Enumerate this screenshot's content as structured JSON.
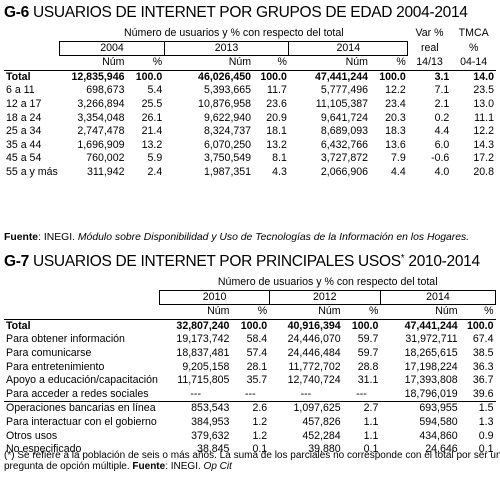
{
  "g6": {
    "code": "G-6",
    "title": "USUARIOS DE INTERNET POR GRUPOS DE EDAD 2004-2014",
    "group_header": "Número de usuarios y % con respecto del total",
    "extra_headers": [
      "Var %",
      "TMCA"
    ],
    "extra_sub1": [
      "real",
      "%"
    ],
    "extra_sub2": [
      "14/13",
      "04-14"
    ],
    "years": [
      "2004",
      "2013",
      "2014"
    ],
    "col_num": "Núm",
    "col_pct": "%",
    "rows": [
      {
        "label": "Total",
        "v": [
          "12,835,946",
          "100.0",
          "46,026,450",
          "100.0",
          "47,441,244",
          "100.0",
          "3.1",
          "14.0"
        ]
      },
      {
        "label": "6 a 11",
        "v": [
          "698,673",
          "5.4",
          "5,393,665",
          "11.7",
          "5,777,496",
          "12.2",
          "7.1",
          "23.5"
        ]
      },
      {
        "label": "12 a 17",
        "v": [
          "3,266,894",
          "25.5",
          "10,876,958",
          "23.6",
          "11,105,387",
          "23.4",
          "2.1",
          "13.0"
        ]
      },
      {
        "label": "18 a 24",
        "v": [
          "3,354,048",
          "26.1",
          "9,622,940",
          "20.9",
          "9,641,724",
          "20.3",
          "0.2",
          "11.1"
        ]
      },
      {
        "label": "25 a 34",
        "v": [
          "2,747,478",
          "21.4",
          "8,324,737",
          "18.1",
          "8,689,093",
          "18.3",
          "4.4",
          "12.2"
        ]
      },
      {
        "label": "35 a 44",
        "v": [
          "1,696,909",
          "13.2",
          "6,070,250",
          "13.2",
          "6,432,766",
          "13.6",
          "6.0",
          "14.3"
        ]
      },
      {
        "label": "45 a 54",
        "v": [
          "760,002",
          "5.9",
          "3,750,549",
          "8.1",
          "3,727,872",
          "7.9",
          "-0.6",
          "17.2"
        ]
      },
      {
        "label": "55 a y más",
        "v": [
          "311,942",
          "2.4",
          "1,987,351",
          "4.3",
          "2,066,906",
          "4.4",
          "4.0",
          "20.8"
        ]
      }
    ],
    "source_label": "Fuente",
    "source_text": ": INEGI. ",
    "source_italic": "Módulo sobre Disponibilidad y Uso de Tecnologías de la Información en los Hogares."
  },
  "g7": {
    "code": "G-7",
    "title": "USUARIOS DE INTERNET POR PRINCIPALES USOS",
    "title_mark": "*",
    "title_years": "2010-2014",
    "group_header": "Número de usuarios y % con respecto del total",
    "years": [
      "2010",
      "2012",
      "2014"
    ],
    "col_num": "Núm",
    "col_pct": "%",
    "rows": [
      {
        "label": "Total",
        "v": [
          "32,807,240",
          "100.0",
          "40,916,394",
          "100.0",
          "47,441,244",
          "100.0"
        ]
      },
      {
        "label": "Para obtener información",
        "v": [
          "19,173,742",
          "58.4",
          "24,446,070",
          "59.7",
          "31,972,711",
          "67.4"
        ]
      },
      {
        "label": "Para comunicarse",
        "v": [
          "18,837,481",
          "57.4",
          "24,446,484",
          "59.7",
          "18,265,615",
          "38.5"
        ]
      },
      {
        "label": "Para entretenimiento",
        "v": [
          "9,205,158",
          "28.1",
          "11,772,702",
          "28.8",
          "17,198,224",
          "36.3"
        ]
      },
      {
        "label": "Apoyo a educación/capacitación",
        "v": [
          "11,715,805",
          "35.7",
          "12,740,724",
          "31.1",
          "17,393,808",
          "36.7"
        ]
      },
      {
        "label": "Para acceder a redes sociales",
        "v": [
          "---",
          "---",
          "---",
          "---",
          "18,796,019",
          "39.6"
        ]
      },
      {
        "label": "Operaciones bancarias en línea",
        "v": [
          "853,543",
          "2.6",
          "1,097,625",
          "2.7",
          "693,955",
          "1.5"
        ]
      },
      {
        "label": "Para interactuar con el gobierno",
        "v": [
          "384,953",
          "1.2",
          "457,826",
          "1.1",
          "594,580",
          "1.3"
        ]
      },
      {
        "label": "Otros usos",
        "v": [
          "379,632",
          "1.2",
          "452,284",
          "1.1",
          "434,860",
          "0.9"
        ]
      },
      {
        "label": "No especificado",
        "v": [
          "38,845",
          "0.1",
          "39,880",
          "0.1",
          "24,646",
          "0.1"
        ]
      }
    ],
    "footnote_1": "(*) Se refiere a la población de seis o más años.  La suma de los parciales no corresponde con el total por ser una",
    "footnote_2": "pregunta de opción múltiple. ",
    "source_label": "Fuente",
    "source_text": ": INEGI. ",
    "source_italic": "Op Cit"
  }
}
